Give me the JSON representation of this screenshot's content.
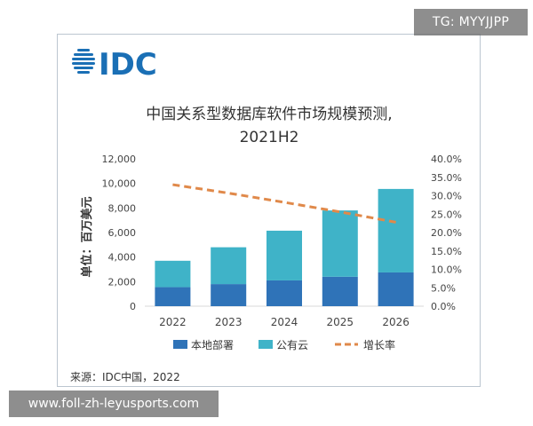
{
  "brand": {
    "logo_text": "IDC"
  },
  "watermarks": {
    "top": "TG: MYYJJPP",
    "bottom": "www.foll-zh-leyusports.com"
  },
  "source_note": "来源：IDC中国，2022",
  "colors": {
    "onprem": "#2f73b8",
    "public_cloud": "#3fb3c8",
    "growth": "#e0894a",
    "logo": "#1a6fb5"
  },
  "chart_data": {
    "type": "bar",
    "stacked": true,
    "title": "中国关系型数据库软件市场规模预测,",
    "subtitle": "2021H2",
    "ylabel": "单位：百万美元",
    "categories": [
      "2022",
      "2023",
      "2024",
      "2025",
      "2026"
    ],
    "ylim": [
      0,
      12000
    ],
    "y_ticks": [
      "12,000",
      "10,000",
      "8,000",
      "6,000",
      "4,000",
      "2,000",
      "0"
    ],
    "y2lim": [
      0,
      40
    ],
    "y2_ticks": [
      "40.0%",
      "35.0%",
      "30.0%",
      "25.0%",
      "20.0%",
      "15.0%",
      "10.0%",
      "5.0%",
      "0.0%"
    ],
    "series": [
      {
        "name": "本地部署",
        "values": [
          1550,
          1800,
          2100,
          2400,
          2750
        ]
      },
      {
        "name": "公有云",
        "values": [
          2150,
          3000,
          4050,
          5400,
          6800
        ]
      },
      {
        "name": "增长率",
        "type": "line",
        "dashed": true,
        "axis": "right",
        "values": [
          33.0,
          30.7,
          28.2,
          25.6,
          22.8
        ]
      }
    ],
    "legend_position": "bottom",
    "grid": false
  }
}
